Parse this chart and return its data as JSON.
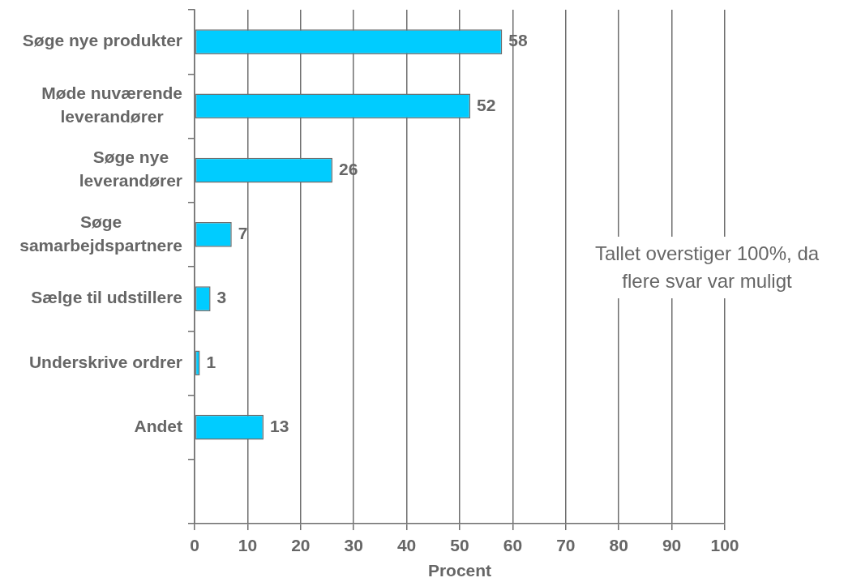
{
  "chart_data": {
    "type": "bar",
    "orientation": "horizontal",
    "categories": [
      "Søge nye produkter",
      "Møde nuværende leverandører",
      "Søge nye leverandører",
      "Søge samarbejdspartnere",
      "Sælge til udstillere",
      "Underskrive ordrer",
      "Andet",
      null
    ],
    "values": [
      58,
      52,
      26,
      7,
      3,
      1,
      13,
      null
    ],
    "color": "#00ccff",
    "xlabel": "Procent",
    "xlim": [
      0,
      100
    ],
    "xticks": [
      0,
      10,
      20,
      30,
      40,
      50,
      60,
      70,
      80,
      90,
      100
    ],
    "grid": "x",
    "data_labels": true,
    "annotations": [
      "Tallet overstiger 100%, da flere svar var muligt"
    ]
  }
}
